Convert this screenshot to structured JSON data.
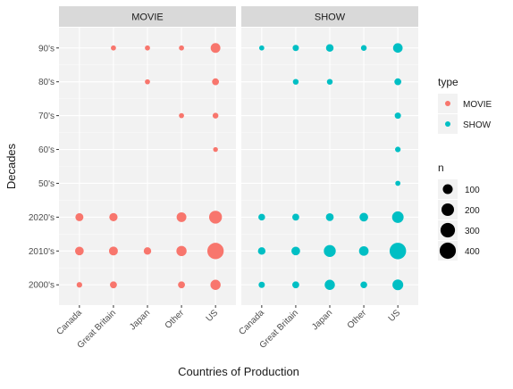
{
  "chart_data": {
    "type": "scatter",
    "facet_variable": "type",
    "facets": [
      "MOVIE",
      "SHOW"
    ],
    "x_categories": [
      "Canada",
      "Great Britain",
      "Japan",
      "Other",
      "US"
    ],
    "y_categories": [
      "2000's",
      "2010's",
      "2020's",
      "50's",
      "60's",
      "70's",
      "80's",
      "90's"
    ],
    "xlabel": "Countries of Production",
    "ylabel": "Decades",
    "grid": true,
    "legend_placement": "right",
    "legends": {
      "color": {
        "title": "type",
        "entries": [
          {
            "label": "MOVIE",
            "color": "#F8766D"
          },
          {
            "label": "SHOW",
            "color": "#00BFC4"
          }
        ]
      },
      "size": {
        "title": "n",
        "entries": [
          {
            "label": "100",
            "value": 100
          },
          {
            "label": "200",
            "value": 200
          },
          {
            "label": "300",
            "value": 300
          },
          {
            "label": "400",
            "value": 400
          }
        ]
      }
    },
    "size_range": [
      0,
      450
    ],
    "series": [
      {
        "name": "MOVIE",
        "color": "#F8766D",
        "points": [
          {
            "country": "Canada",
            "decade": "2000's",
            "n": 10
          },
          {
            "country": "Canada",
            "decade": "2010's",
            "n": 65
          },
          {
            "country": "Canada",
            "decade": "2020's",
            "n": 50
          },
          {
            "country": "Great Britain",
            "decade": "2000's",
            "n": 28
          },
          {
            "country": "Great Britain",
            "decade": "2010's",
            "n": 70
          },
          {
            "country": "Great Britain",
            "decade": "2020's",
            "n": 55
          },
          {
            "country": "Great Britain",
            "decade": "90's",
            "n": 6
          },
          {
            "country": "Japan",
            "decade": "2010's",
            "n": 38
          },
          {
            "country": "Japan",
            "decade": "80's",
            "n": 6
          },
          {
            "country": "Japan",
            "decade": "90's",
            "n": 6
          },
          {
            "country": "Other",
            "decade": "2000's",
            "n": 28
          },
          {
            "country": "Other",
            "decade": "2010's",
            "n": 110
          },
          {
            "country": "Other",
            "decade": "2020's",
            "n": 95
          },
          {
            "country": "Other",
            "decade": "70's",
            "n": 6
          },
          {
            "country": "Other",
            "decade": "90's",
            "n": 6
          },
          {
            "country": "US",
            "decade": "2000's",
            "n": 110
          },
          {
            "country": "US",
            "decade": "2010's",
            "n": 410
          },
          {
            "country": "US",
            "decade": "2020's",
            "n": 215
          },
          {
            "country": "US",
            "decade": "60's",
            "n": 4
          },
          {
            "country": "US",
            "decade": "70's",
            "n": 12
          },
          {
            "country": "US",
            "decade": "80's",
            "n": 28
          },
          {
            "country": "US",
            "decade": "90's",
            "n": 95
          }
        ]
      },
      {
        "name": "SHOW",
        "color": "#00BFC4",
        "points": [
          {
            "country": "Canada",
            "decade": "2000's",
            "n": 18
          },
          {
            "country": "Canada",
            "decade": "2010's",
            "n": 40
          },
          {
            "country": "Canada",
            "decade": "2020's",
            "n": 25
          },
          {
            "country": "Canada",
            "decade": "90's",
            "n": 6
          },
          {
            "country": "Great Britain",
            "decade": "2000's",
            "n": 28
          },
          {
            "country": "Great Britain",
            "decade": "2010's",
            "n": 65
          },
          {
            "country": "Great Britain",
            "decade": "2020's",
            "n": 28
          },
          {
            "country": "Great Britain",
            "decade": "80's",
            "n": 12
          },
          {
            "country": "Great Britain",
            "decade": "90's",
            "n": 18
          },
          {
            "country": "Japan",
            "decade": "2000's",
            "n": 110
          },
          {
            "country": "Japan",
            "decade": "2010's",
            "n": 175
          },
          {
            "country": "Japan",
            "decade": "2020's",
            "n": 45
          },
          {
            "country": "Japan",
            "decade": "80's",
            "n": 12
          },
          {
            "country": "Japan",
            "decade": "90's",
            "n": 40
          },
          {
            "country": "Other",
            "decade": "2000's",
            "n": 25
          },
          {
            "country": "Other",
            "decade": "2010's",
            "n": 90
          },
          {
            "country": "Other",
            "decade": "2020's",
            "n": 65
          },
          {
            "country": "Other",
            "decade": "90's",
            "n": 12
          },
          {
            "country": "US",
            "decade": "2000's",
            "n": 130
          },
          {
            "country": "US",
            "decade": "2010's",
            "n": 420
          },
          {
            "country": "US",
            "decade": "2020's",
            "n": 160
          },
          {
            "country": "US",
            "decade": "50's",
            "n": 6
          },
          {
            "country": "US",
            "decade": "60's",
            "n": 10
          },
          {
            "country": "US",
            "decade": "70's",
            "n": 18
          },
          {
            "country": "US",
            "decade": "80's",
            "n": 28
          },
          {
            "country": "US",
            "decade": "90's",
            "n": 90
          }
        ]
      }
    ]
  },
  "colors": {
    "panel_bg": "#F2F2F2",
    "strip_bg": "#D9D9D9",
    "grid_major": "#FFFFFF",
    "text": "#1A1A1A",
    "tick": "#4D4D4D"
  }
}
